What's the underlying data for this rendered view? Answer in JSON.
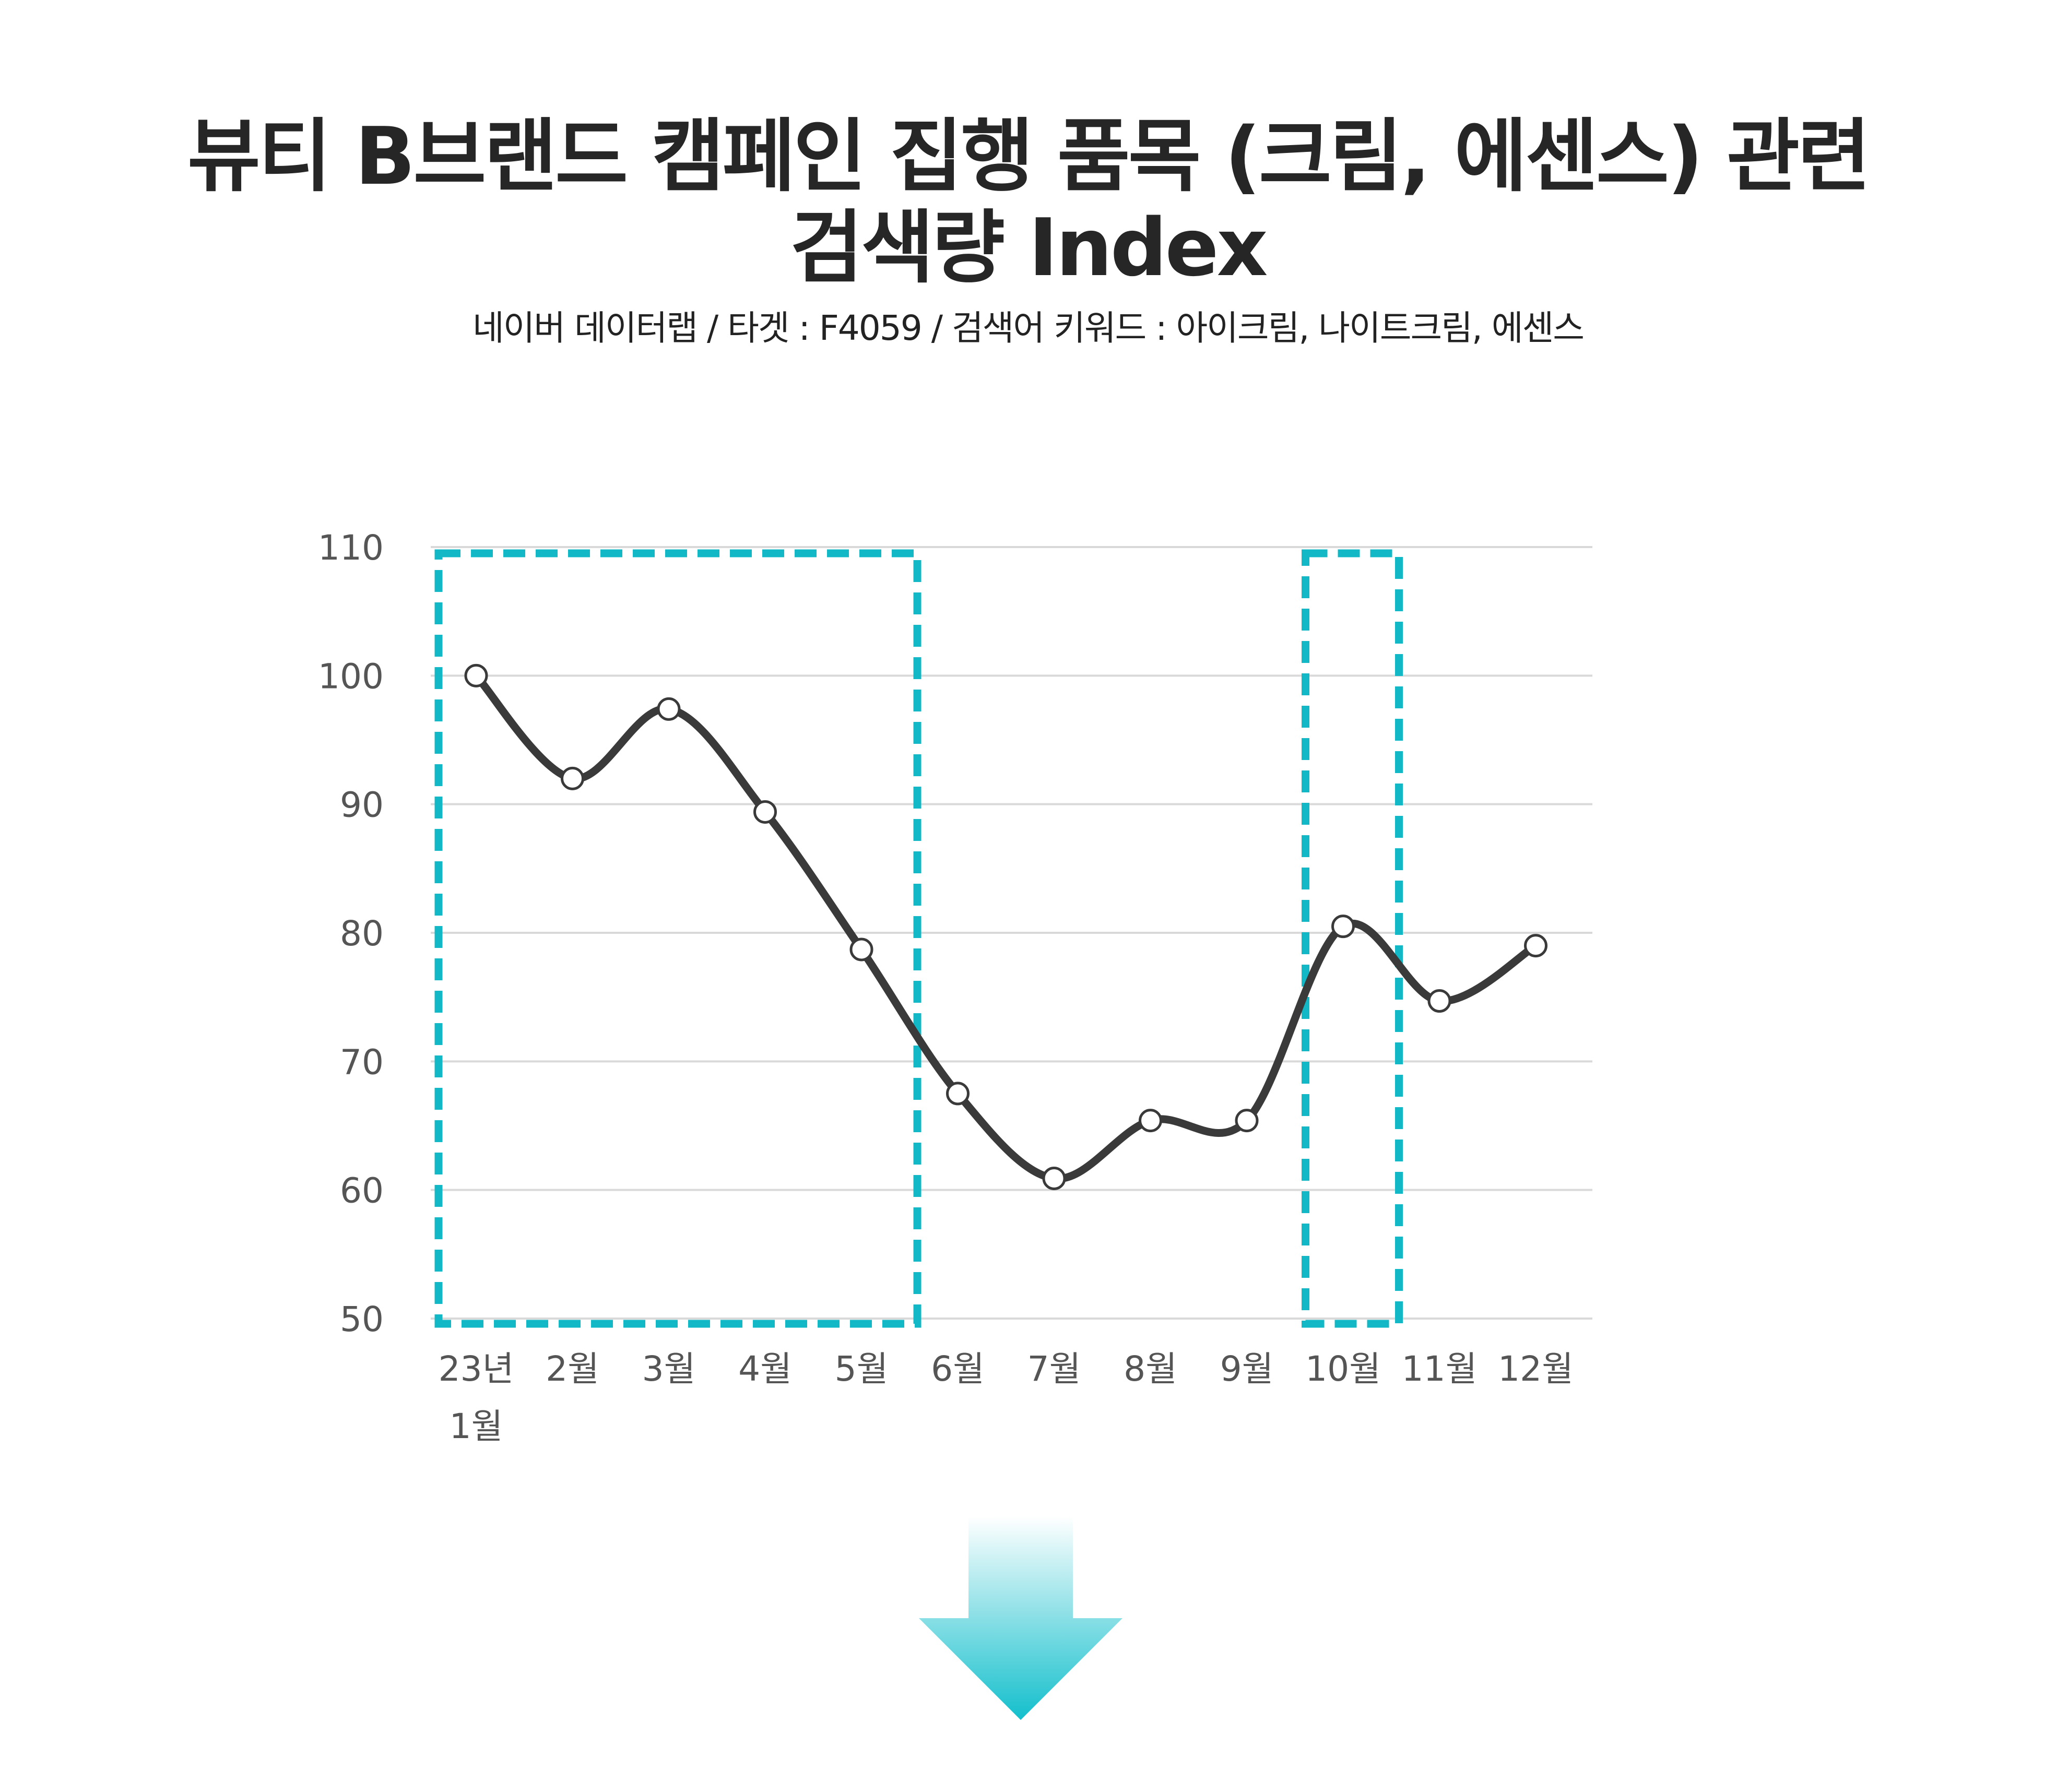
{
  "title_line1": "뷰티 B브랜드 캠페인 집행 품목 (크림, 에센스) 관련",
  "title_line2": "검색량 Index",
  "subtitle": "네이버 데이터랩 / 타겟 : F4059 / 검색어 키워드 : 아이크림, 나이트크림, 에센스",
  "colors": {
    "line": "#3a3a3a",
    "grid": "#d9d9d9",
    "highlight": "#13b8c6",
    "arrow_top": "#ffffff",
    "arrow_bottom": "#13bfcc"
  },
  "icons": {
    "arrow": "down-arrow-icon"
  },
  "chart_data": {
    "type": "line",
    "smooth": true,
    "title": "",
    "xlabel": "",
    "ylabel": "",
    "categories": [
      "23년 1월",
      "2월",
      "3월",
      "4월",
      "5월",
      "6월",
      "7월",
      "8월",
      "9월",
      "10월",
      "11월",
      "12월"
    ],
    "x_tick_labels": [
      [
        "23년",
        "1월"
      ],
      [
        "2월"
      ],
      [
        "3월"
      ],
      [
        "4월"
      ],
      [
        "5월"
      ],
      [
        "6월"
      ],
      [
        "7월"
      ],
      [
        "8월"
      ],
      [
        "9월"
      ],
      [
        "10월"
      ],
      [
        "11월"
      ],
      [
        "12월"
      ]
    ],
    "series": [
      {
        "values": [
          100,
          92,
          97.4,
          89.4,
          78.7,
          67.5,
          60.9,
          65.4,
          65.4,
          80.5,
          74.7,
          79
        ]
      }
    ],
    "ylim": [
      50,
      110
    ],
    "yticks": [
      50,
      60,
      70,
      80,
      90,
      100,
      110
    ],
    "grid": true,
    "legend": "none",
    "highlight_ranges": [
      {
        "from": "23년 1월",
        "to": "5월"
      },
      {
        "from": "10월",
        "to": "10월"
      }
    ]
  }
}
